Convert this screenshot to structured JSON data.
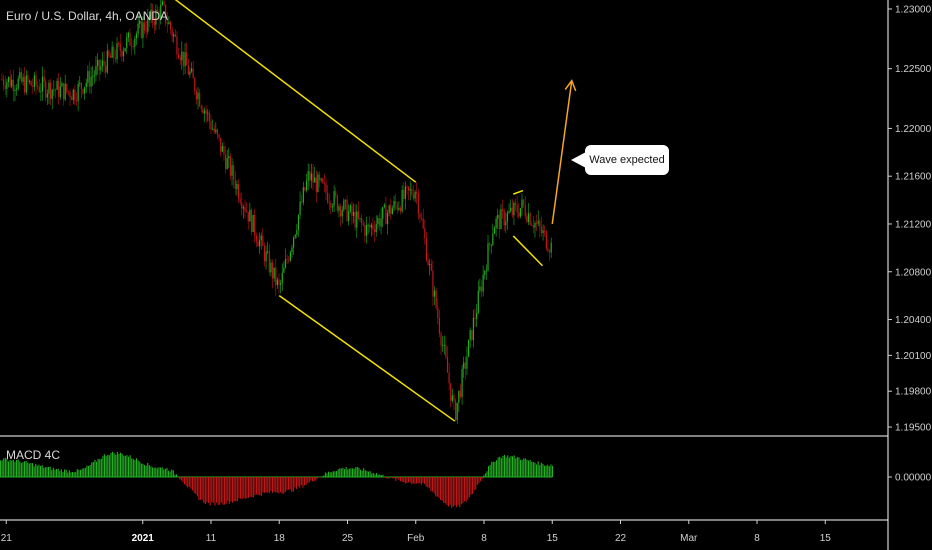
{
  "header": {
    "title": "Euro / U.S. Dollar, 4h, OANDA"
  },
  "macd": {
    "label": "MACD 4C",
    "zero_label": "0.00000"
  },
  "annotation": {
    "text": "Wave expected"
  },
  "colors": {
    "background": "#000000",
    "up_candle": "#22b022",
    "down_candle": "#c01818",
    "trendline": "#f2e000",
    "projection": "#f5a623",
    "axis": "#d0d0d0",
    "divider": "#ffffff"
  },
  "chart_data": [
    {
      "type": "candlestick",
      "title": "Euro / U.S. Dollar, 4h, OANDA",
      "y_ticks": [
        "1.23000",
        "1.22500",
        "1.22000",
        "1.21600",
        "1.21200",
        "1.20800",
        "1.20400",
        "1.20100",
        "1.19800",
        "1.19500"
      ],
      "x_ticks": [
        "21",
        "2021",
        "11",
        "18",
        "25",
        "Feb",
        "8",
        "15",
        "22",
        "Mar",
        "8",
        "15"
      ],
      "ylim": [
        1.1945,
        1.2305
      ],
      "trend": {
        "x": [
          "Dec 18",
          "Dec 28",
          "Jan 6",
          "Jan 13",
          "Jan 18",
          "Jan 21",
          "Jan 27",
          "Feb 1",
          "Feb 5",
          "Feb 9",
          "Feb 12",
          "Feb 15"
        ],
        "y": [
          1.2245,
          1.223,
          1.23,
          1.2165,
          1.2065,
          1.216,
          1.2115,
          1.215,
          1.196,
          1.212,
          1.2135,
          1.21
        ]
      },
      "drawings": [
        {
          "kind": "trendline",
          "from": [
            "Jan 7",
            1.231
          ],
          "to": [
            "Feb 1",
            1.2155
          ]
        },
        {
          "kind": "trendline",
          "from": [
            "Jan 18",
            1.206
          ],
          "to": [
            "Feb 5",
            1.1955
          ]
        },
        {
          "kind": "trendline",
          "from": [
            "Feb 11",
            1.2145
          ],
          "to": [
            "Feb 12",
            1.2148
          ]
        },
        {
          "kind": "trendline",
          "from": [
            "Feb 11",
            1.211
          ],
          "to": [
            "Feb 14",
            1.2085
          ]
        },
        {
          "kind": "projection",
          "from": [
            "Feb 15",
            1.212
          ],
          "to": [
            "Feb 17",
            1.224
          ]
        }
      ],
      "annotation": "Wave expected"
    },
    {
      "type": "histogram",
      "name": "MACD 4C",
      "y_ticks": [
        "0.00000"
      ],
      "profile": [
        {
          "x": "Dec 20",
          "y": 0.6
        },
        {
          "x": "Dec 28",
          "y": 0.2
        },
        {
          "x": "Jan 1",
          "y": 0.8
        },
        {
          "x": "Jan 6",
          "y": 0.3
        },
        {
          "x": "Jan 11",
          "y": -0.9
        },
        {
          "x": "Jan 18",
          "y": -0.5
        },
        {
          "x": "Jan 25",
          "y": 0.3
        },
        {
          "x": "Feb 1",
          "y": -0.2
        },
        {
          "x": "Feb 5",
          "y": -1.0
        },
        {
          "x": "Feb 10",
          "y": 0.7
        },
        {
          "x": "Feb 15",
          "y": 0.4
        }
      ]
    }
  ]
}
